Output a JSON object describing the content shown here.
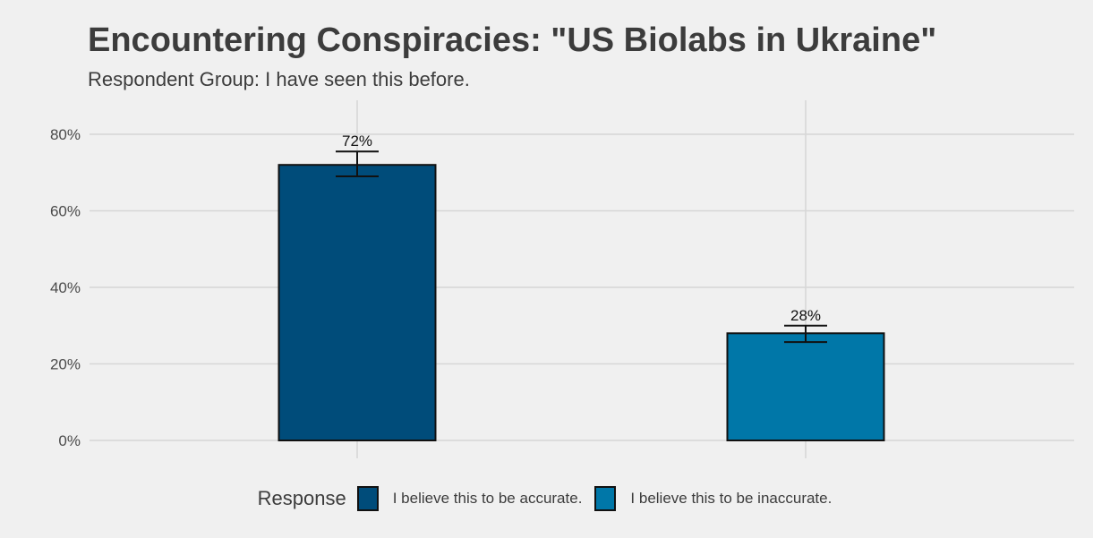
{
  "chart_data": {
    "type": "bar",
    "title": "Encountering Conspiracies: \"US Biolabs in Ukraine\"",
    "subtitle": "Respondent Group: I have seen this before.",
    "categories": [
      "I believe this to be accurate.",
      "I believe this to be inaccurate."
    ],
    "values": [
      72,
      28
    ],
    "data_labels": [
      "72%",
      "28%"
    ],
    "error_bars": [
      {
        "low": 69,
        "high": 75.5
      },
      {
        "low": 25.7,
        "high": 30
      }
    ],
    "colors": [
      "#004c7a",
      "#0077a8"
    ],
    "ylim": [
      0,
      88
    ],
    "yticks": [
      0,
      20,
      40,
      60,
      80
    ],
    "ytick_labels": [
      "0%",
      "20%",
      "40%",
      "60%",
      "80%"
    ],
    "grid": true,
    "legend": {
      "title": "Response",
      "position": "bottom",
      "entries": [
        "I believe this to be accurate.",
        "I believe this to be inaccurate."
      ]
    }
  }
}
